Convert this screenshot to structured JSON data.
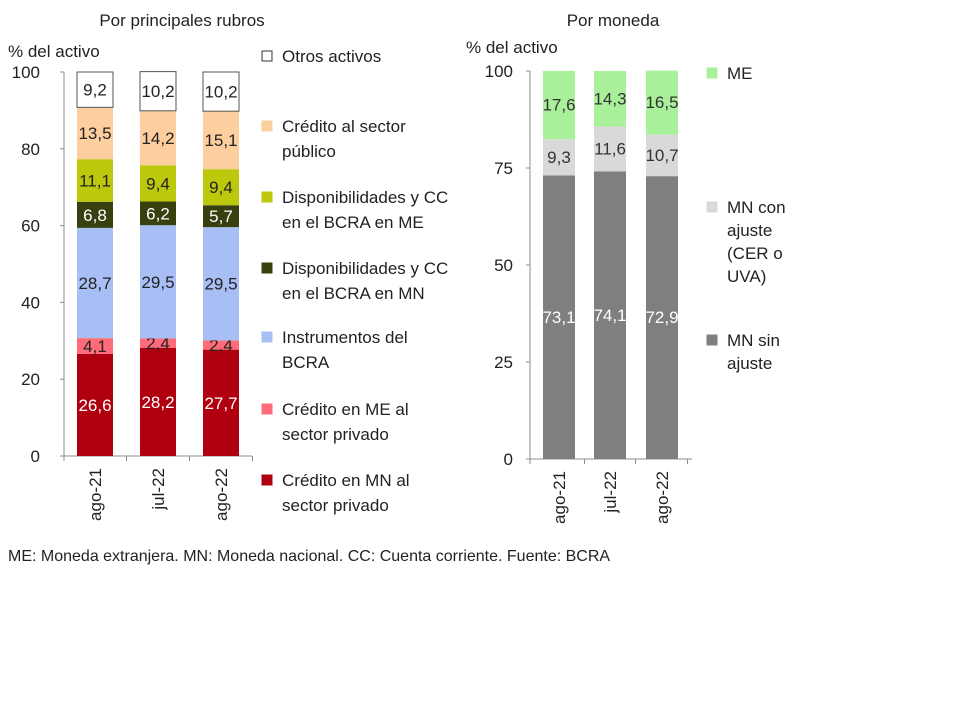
{
  "footnote": "ME: Moneda extranjera. MN: Moneda nacional. CC: Cuenta corriente. Fuente: BCRA",
  "chart_data": [
    {
      "type": "bar",
      "stacked": true,
      "title": "Por principales rubros",
      "ylabel": "% del activo",
      "ylim": [
        0,
        100
      ],
      "yticks": [
        0,
        20,
        40,
        60,
        80,
        100
      ],
      "categories": [
        "ago-21",
        "jul-22",
        "ago-22"
      ],
      "series": [
        {
          "name": "Crédito en MN al sector privado",
          "legend_lines": [
            "Crédito en MN al",
            "sector privado"
          ],
          "color": "#b0000f",
          "label_color": "#ffffff",
          "values": [
            26.6,
            28.2,
            27.7
          ],
          "labels": [
            "26,6",
            "28,2",
            "27,7"
          ]
        },
        {
          "name": "Crédito en ME al sector privado",
          "legend_lines": [
            "Crédito en ME al",
            "sector privado"
          ],
          "color": "#ff6b78",
          "label_color": "#222222",
          "values": [
            4.1,
            2.4,
            2.4
          ],
          "labels": [
            "4,1",
            "2,4",
            "2,4"
          ]
        },
        {
          "name": "Instrumentos del BCRA",
          "legend_lines": [
            "Instrumentos del",
            "BCRA"
          ],
          "color": "#a8bff5",
          "label_color": "#222222",
          "values": [
            28.7,
            29.5,
            29.5
          ],
          "labels": [
            "28,7",
            "29,5",
            "29,5"
          ]
        },
        {
          "name": "Disponibilidades y CC en el BCRA en MN",
          "legend_lines": [
            "Disponibilidades y CC",
            "en el BCRA en MN"
          ],
          "color": "#38400f",
          "label_color": "#ffffff",
          "values": [
            6.8,
            6.2,
            5.7
          ],
          "labels": [
            "6,8",
            "6,2",
            "5,7"
          ]
        },
        {
          "name": "Disponibilidades y CC en el BCRA en ME",
          "legend_lines": [
            "Disponibilidades y CC",
            "en el BCRA en ME"
          ],
          "color": "#bcc80c",
          "label_color": "#222222",
          "values": [
            11.1,
            9.4,
            9.4
          ],
          "labels": [
            "11,1",
            "9,4",
            "9,4"
          ]
        },
        {
          "name": "Crédito al sector público",
          "legend_lines": [
            "Crédito al sector",
            "público"
          ],
          "color": "#fdcf9e",
          "label_color": "#222222",
          "values": [
            13.5,
            14.2,
            15.1
          ],
          "labels": [
            "13,5",
            "14,2",
            "15,1"
          ]
        },
        {
          "name": "Otros activos",
          "legend_lines": [
            "Otros activos"
          ],
          "color": "#ffffff",
          "label_color": "#222222",
          "values": [
            9.2,
            10.2,
            10.2
          ],
          "labels": [
            "9,2",
            "10,2",
            "10,2"
          ]
        }
      ]
    },
    {
      "type": "bar",
      "stacked": true,
      "title": "Por moneda",
      "ylabel": "% del activo",
      "ylim": [
        0,
        100
      ],
      "yticks": [
        0,
        25,
        50,
        75,
        100
      ],
      "categories": [
        "ago-21",
        "jul-22",
        "ago-22"
      ],
      "series": [
        {
          "name": "MN sin ajuste",
          "legend_lines": [
            "MN sin",
            "ajuste"
          ],
          "color": "#7f7f7f",
          "label_color": "#ffffff",
          "values": [
            73.1,
            74.1,
            72.9
          ],
          "labels": [
            "73,1",
            "74,1",
            "72,9"
          ]
        },
        {
          "name": "MN con ajuste (CER o UVA)",
          "legend_lines": [
            "MN con",
            "ajuste",
            "(CER o",
            "UVA)"
          ],
          "color": "#d9d9d9",
          "label_color": "#333333",
          "values": [
            9.3,
            11.6,
            10.7
          ],
          "labels": [
            "9,3",
            "11,6",
            "10,7"
          ]
        },
        {
          "name": "ME",
          "legend_lines": [
            "ME"
          ],
          "color": "#a9f09a",
          "label_color": "#333333",
          "values": [
            17.6,
            14.3,
            16.5
          ],
          "labels": [
            "17,6",
            "14,3",
            "16,5"
          ]
        }
      ]
    }
  ]
}
